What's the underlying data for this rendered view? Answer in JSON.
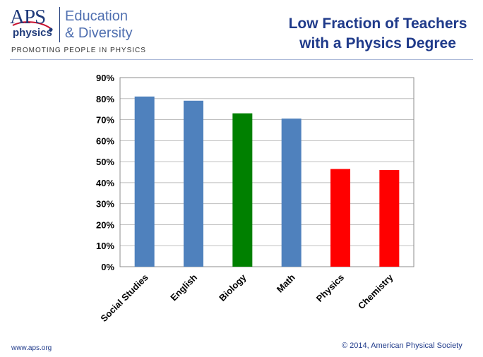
{
  "logo": {
    "aps": "APS",
    "physics": "physics",
    "education_line1": "Education",
    "education_line2": "& Diversity",
    "tagline": "PROMOTING PEOPLE IN PHYSICS"
  },
  "header": {
    "title_line1": "Low Fraction of Teachers",
    "title_line2": "with a Physics Degree"
  },
  "footer": {
    "website": "www.aps.org",
    "copyright": "© 2014, American Physical Society"
  },
  "colors": {
    "blue": "#4f81bd",
    "green": "#008000",
    "red": "#ff0000",
    "title": "#1f3a8a",
    "grid": "#bfbfbf"
  },
  "chart_data": {
    "type": "bar",
    "categories": [
      "Social Studies",
      "English",
      "Biology",
      "Math",
      "Physics",
      "Chemistry"
    ],
    "values": [
      81,
      79,
      73,
      70.5,
      46.5,
      46
    ],
    "bar_colors": [
      "#4f81bd",
      "#4f81bd",
      "#008000",
      "#4f81bd",
      "#ff0000",
      "#ff0000"
    ],
    "yticks": [
      "0%",
      "10%",
      "20%",
      "30%",
      "40%",
      "50%",
      "60%",
      "70%",
      "80%",
      "90%"
    ],
    "ylim": [
      0,
      90
    ],
    "grid": true,
    "title": "",
    "xlabel": "",
    "ylabel": ""
  }
}
